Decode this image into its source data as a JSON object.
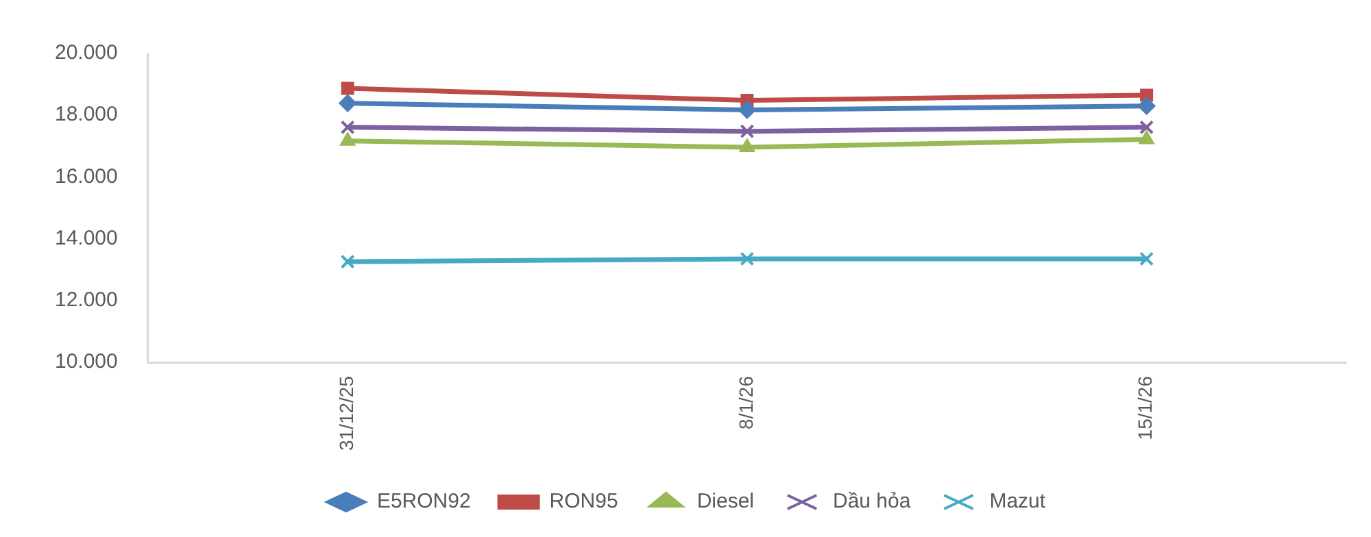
{
  "chart_data": {
    "type": "line",
    "categories": [
      "31/12/25",
      "8/1/26",
      "15/1/26"
    ],
    "series": [
      {
        "name": "E5RON92",
        "color": "#4a7ebb",
        "marker": "diamond",
        "values": [
          18390,
          18170,
          18300
        ]
      },
      {
        "name": "RON95",
        "color": "#be4b48",
        "marker": "square",
        "values": [
          18870,
          18480,
          18650
        ]
      },
      {
        "name": "Diesel",
        "color": "#98b954",
        "marker": "triangle",
        "values": [
          17170,
          16960,
          17220
        ]
      },
      {
        "name": "Dầu hỏa",
        "color": "#7d60a0",
        "marker": "cross",
        "values": [
          17610,
          17480,
          17610
        ]
      },
      {
        "name": "Mazut",
        "color": "#46aac5",
        "marker": "cross",
        "values": [
          13260,
          13350,
          13350
        ]
      }
    ],
    "ylim": [
      10000,
      20000
    ],
    "yticks": [
      {
        "value": 10000,
        "label": "10.000"
      },
      {
        "value": 12000,
        "label": "12.000"
      },
      {
        "value": 14000,
        "label": "14.000"
      },
      {
        "value": 16000,
        "label": "16.000"
      },
      {
        "value": 18000,
        "label": "18.000"
      },
      {
        "value": 20000,
        "label": "20.000"
      }
    ],
    "grid": false,
    "legend": "bottom",
    "line_style": "solid"
  }
}
